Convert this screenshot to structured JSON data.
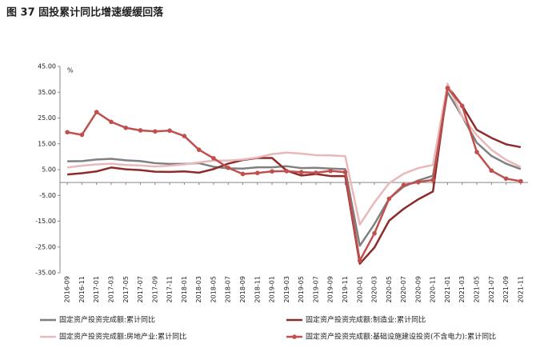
{
  "chart_data": {
    "type": "line",
    "title": "图 37  固投累计同比增速缓缓回落",
    "y_unit": "%",
    "categories": [
      "2016-09",
      "2016-11",
      "2017-01",
      "2017-03",
      "2017-05",
      "2017-07",
      "2017-09",
      "2017-11",
      "2018-01",
      "2018-03",
      "2018-05",
      "2018-07",
      "2018-09",
      "2018-11",
      "2019-01",
      "2019-03",
      "2019-05",
      "2019-07",
      "2019-09",
      "2019-11",
      "2020-01",
      "2020-03",
      "2020-05",
      "2020-07",
      "2020-09",
      "2020-11",
      "2021-01",
      "2021-03",
      "2021-05",
      "2021-07",
      "2021-09",
      "2021-11"
    ],
    "series": [
      {
        "name": "固定资产投资完成额:累计同比",
        "color": "#808080",
        "markers": false,
        "values": [
          8.2,
          8.3,
          8.9,
          9.2,
          8.6,
          8.3,
          7.5,
          7.2,
          7.2,
          7.5,
          6.1,
          5.5,
          5.4,
          5.9,
          5.9,
          6.3,
          5.6,
          5.7,
          5.4,
          5.2,
          -24.5,
          -16.1,
          -6.3,
          -1.6,
          0.8,
          2.6,
          35.0,
          25.6,
          15.4,
          10.3,
          7.3,
          5.2
        ]
      },
      {
        "name": "固定资产投资完成额:制造业:累计同比",
        "color": "#8e2b2b",
        "markers": false,
        "values": [
          3.1,
          3.6,
          4.3,
          5.8,
          5.1,
          4.8,
          4.2,
          4.1,
          4.3,
          3.8,
          5.2,
          7.3,
          8.7,
          9.5,
          9.5,
          4.6,
          2.7,
          3.3,
          2.5,
          2.5,
          -31.5,
          -25.2,
          -14.8,
          -10.2,
          -6.5,
          -3.5,
          37.3,
          29.8,
          20.4,
          17.3,
          14.8,
          13.7
        ]
      },
      {
        "name": "固定资产投资完成额:房地产业:累计同比",
        "color": "#e9b8b8",
        "markers": false,
        "values": [
          5.8,
          6.5,
          7.0,
          7.3,
          6.8,
          6.6,
          6.2,
          6.5,
          7.0,
          7.8,
          8.5,
          8.5,
          8.9,
          9.7,
          11.0,
          11.6,
          11.2,
          10.6,
          10.5,
          10.2,
          -16.3,
          -7.7,
          -0.3,
          3.4,
          5.6,
          6.8,
          38.3,
          25.6,
          18.3,
          12.7,
          8.8,
          6.0
        ]
      },
      {
        "name": "固定资产投资完成额:基础设施建设投资(不含电力):累计同比",
        "color": "#c0504d",
        "markers": true,
        "values": [
          19.5,
          18.5,
          27.3,
          23.5,
          21.2,
          20.2,
          19.8,
          20.1,
          18.0,
          12.7,
          9.4,
          5.7,
          3.3,
          3.7,
          4.3,
          4.4,
          4.0,
          3.8,
          4.5,
          4.0,
          -30.3,
          -19.7,
          -6.3,
          -1.0,
          0.2,
          1.0,
          36.6,
          29.7,
          11.8,
          4.6,
          1.5,
          0.5
        ]
      }
    ],
    "ylim": [
      -35,
      45
    ],
    "yticks": [
      {
        "value": -35,
        "label": "-35.00"
      },
      {
        "value": -25,
        "label": "-25.00"
      },
      {
        "value": -15,
        "label": "-15.00"
      },
      {
        "value": -5,
        "label": "-5.00"
      },
      {
        "value": 5,
        "label": "5.00"
      },
      {
        "value": 15,
        "label": "15.00"
      },
      {
        "value": 25,
        "label": "25.00"
      },
      {
        "value": 35,
        "label": "35.00"
      },
      {
        "value": 45,
        "label": "45.00"
      }
    ],
    "legend": "bottom"
  }
}
